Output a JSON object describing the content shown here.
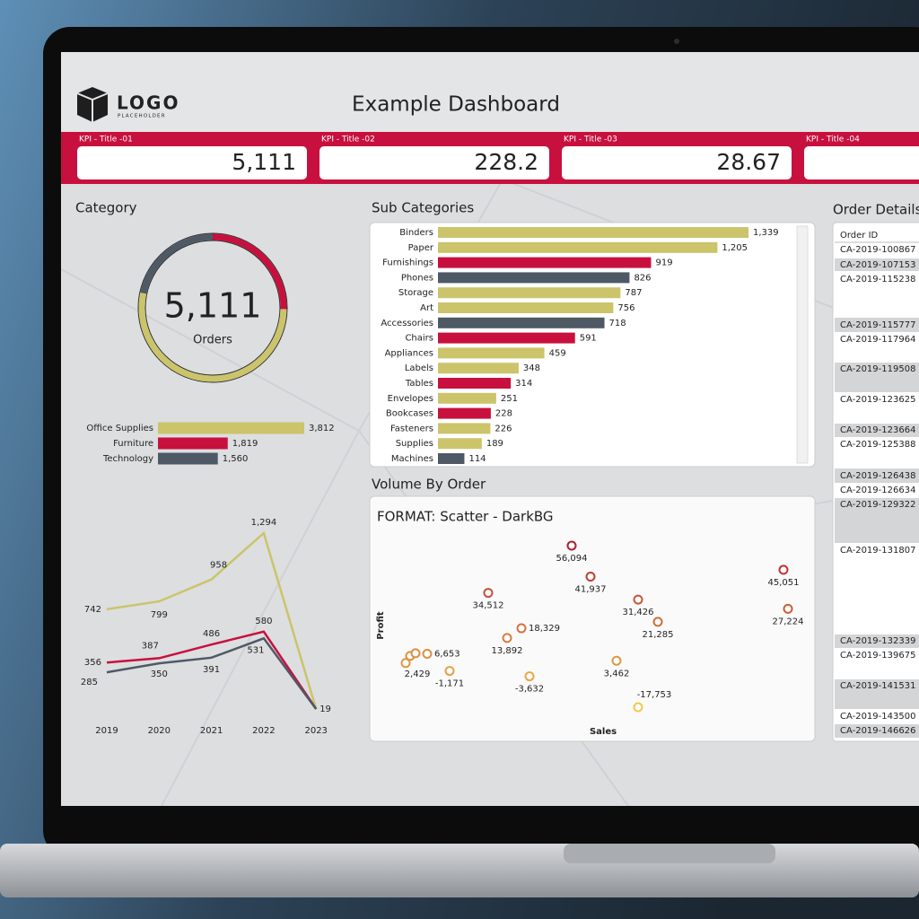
{
  "header": {
    "logo": "LOGO",
    "logo_sub": "PLACEHOLDER",
    "title": "Example Dashboard"
  },
  "kpis": [
    {
      "label": "KPI - Title -01",
      "value": "5,111"
    },
    {
      "label": "KPI - Title -02",
      "value": "228.2"
    },
    {
      "label": "KPI - Title -03",
      "value": "28.67"
    },
    {
      "label": "KPI - Title -04"
    }
  ],
  "category": {
    "title": "Category",
    "donut": {
      "value": "5,111",
      "label": "Orders"
    },
    "bars": {
      "type": "bar",
      "categories": [
        "Office Supplies",
        "Furniture",
        "Technology"
      ],
      "values": [
        3812,
        1819,
        1560
      ],
      "value_labels": [
        "3,812",
        "1,819",
        "1,560"
      ],
      "colors": [
        "#cbc46b",
        "#c8103e",
        "#4f5966"
      ]
    },
    "trend": {
      "type": "line",
      "x": [
        2019,
        2020,
        2021,
        2022,
        2023
      ],
      "series": [
        {
          "color": "#cbc46b",
          "values": [
            742,
            799,
            958,
            1294,
            19
          ],
          "value_labels": [
            "742",
            "799",
            "958",
            "1,294",
            "19"
          ]
        },
        {
          "color": "#c8103e",
          "values": [
            356,
            387,
            486,
            580,
            19
          ],
          "value_labels": [
            "356",
            "387",
            "486",
            "580",
            null
          ]
        },
        {
          "color": "#4f5966",
          "values": [
            285,
            350,
            391,
            531,
            19
          ],
          "value_labels": [
            "285",
            "350",
            "391",
            "531",
            null
          ]
        }
      ]
    }
  },
  "sub_categories": {
    "title": "Sub Categories",
    "chart": {
      "type": "bar",
      "categories": [
        "Binders",
        "Paper",
        "Furnishings",
        "Phones",
        "Storage",
        "Art",
        "Accessories",
        "Chairs",
        "Appliances",
        "Labels",
        "Tables",
        "Envelopes",
        "Bookcases",
        "Fasteners",
        "Supplies",
        "Machines"
      ],
      "values": [
        1339,
        1205,
        919,
        826,
        787,
        756,
        718,
        591,
        459,
        348,
        314,
        251,
        228,
        226,
        189,
        114
      ],
      "value_labels": [
        "1,339",
        "1,205",
        "919",
        "826",
        "787",
        "756",
        "718",
        "591",
        "459",
        "348",
        "314",
        "251",
        "228",
        "226",
        "189",
        "114"
      ],
      "colors": [
        "#cbc46b",
        "#cbc46b",
        "#c8103e",
        "#4f5966",
        "#cbc46b",
        "#cbc46b",
        "#4f5966",
        "#c8103e",
        "#cbc46b",
        "#cbc46b",
        "#c8103e",
        "#cbc46b",
        "#c8103e",
        "#cbc46b",
        "#cbc46b",
        "#4f5966"
      ]
    }
  },
  "volume": {
    "title": "Volume By Order",
    "chart": {
      "type": "scatter",
      "title": "FORMAT: Scatter - DarkBG",
      "xlabel": "Sales",
      "ylabel": "Profit",
      "x": [
        19700,
        43300,
        21800,
        10400,
        27100,
        43800,
        29300,
        14100,
        12500,
        3600,
        24700,
        1200,
        6100,
        15000,
        27100,
        1700,
        2300
      ],
      "values": [
        56094,
        45051,
        41937,
        34512,
        31426,
        27224,
        21285,
        18329,
        13892,
        6653,
        3462,
        2429,
        -1171,
        -3632,
        -17753,
        5700,
        6900
      ],
      "value_labels": [
        "56,094",
        "45,051",
        "41,937",
        "34,512",
        "31,426",
        "27,224",
        "21,285",
        "18,329",
        "13,892",
        "6,653",
        "3,462",
        "2,429",
        "-1,171",
        "-3,632",
        "-17,753",
        null,
        null
      ]
    }
  },
  "orders": {
    "title": "Order Details",
    "header": "Order ID",
    "rows": [
      "CA-2019-100867",
      "CA-2019-107153",
      "CA-2019-115238",
      "CA-2019-115777",
      "CA-2019-117964",
      "CA-2019-119508",
      "CA-2019-123625",
      "CA-2019-123664",
      "CA-2019-125388",
      "CA-2019-126438",
      "CA-2019-126634",
      "CA-2019-129322",
      "CA-2019-131807",
      "CA-2019-132339",
      "CA-2019-139675",
      "CA-2019-141531",
      "CA-2019-143500",
      "CA-2019-146626"
    ]
  }
}
